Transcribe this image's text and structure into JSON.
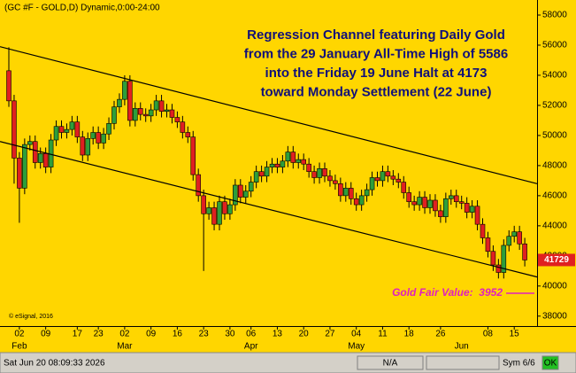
{
  "chart_data": {
    "type": "candlestick",
    "header": "(GC #F - GOLD,D) Dynamic,0:00-24:00",
    "annotation_lines": [
      "Regression Channel featuring Daily Gold",
      "from the 29 January All-Time High of 5586",
      "into the Friday 19 June Halt at 4173",
      "toward Monday Settlement (22 June)"
    ],
    "copyright": "© eSignal, 2016",
    "day_labels": [
      null,
      null,
      "02",
      null,
      null,
      null,
      null,
      "09",
      null,
      null,
      null,
      null,
      null,
      "17",
      null,
      null,
      null,
      "23",
      null,
      null,
      null,
      null,
      "02",
      null,
      null,
      null,
      null,
      "09",
      null,
      null,
      null,
      null,
      "16",
      null,
      null,
      null,
      null,
      "23",
      null,
      null,
      null,
      null,
      "30",
      null,
      null,
      null,
      "06",
      null,
      null,
      null,
      null,
      "13",
      null,
      null,
      null,
      null,
      "20",
      null,
      null,
      null,
      null,
      "27",
      null,
      null,
      null,
      null,
      "04",
      null,
      null,
      null,
      null,
      "11",
      null,
      null,
      null,
      null,
      "18",
      null,
      null,
      null,
      null,
      null,
      "26",
      null,
      null,
      null,
      null,
      null,
      null,
      null,
      null,
      "08",
      null,
      null,
      null,
      null,
      "15",
      null,
      null
    ],
    "month_labels": [
      null,
      null,
      "Feb",
      null,
      null,
      null,
      null,
      null,
      null,
      null,
      null,
      null,
      null,
      null,
      null,
      null,
      null,
      null,
      null,
      null,
      null,
      null,
      "Mar",
      null,
      null,
      null,
      null,
      null,
      null,
      null,
      null,
      null,
      null,
      null,
      null,
      null,
      null,
      null,
      null,
      null,
      null,
      null,
      null,
      null,
      null,
      null,
      "Apr",
      null,
      null,
      null,
      null,
      null,
      null,
      null,
      null,
      null,
      null,
      null,
      null,
      null,
      null,
      null,
      null,
      null,
      null,
      null,
      "May",
      null,
      null,
      null,
      null,
      null,
      null,
      null,
      null,
      null,
      null,
      null,
      null,
      null,
      null,
      null,
      null,
      null,
      null,
      null,
      "Jun",
      null,
      null,
      null,
      null,
      null,
      null,
      null,
      null,
      null,
      null,
      null,
      null
    ],
    "open": [
      54300,
      52300,
      48500,
      46500,
      49400,
      49600,
      48200,
      48800,
      47900,
      49700,
      50600,
      50200,
      50400,
      50900,
      49900,
      48700,
      49800,
      50200,
      49500,
      50100,
      50800,
      51900,
      52400,
      53600,
      51000,
      51800,
      51400,
      51300,
      51700,
      52300,
      51600,
      51700,
      51200,
      50900,
      50200,
      49900,
      47400,
      46000,
      44800,
      45200,
      44100,
      45600,
      44800,
      45400,
      46700,
      45900,
      46300,
      46900,
      47600,
      47300,
      47900,
      48100,
      47900,
      48300,
      48900,
      48200,
      48400,
      48100,
      47600,
      47200,
      47800,
      47300,
      47000,
      46800,
      46000,
      46500,
      45800,
      45400,
      46000,
      46400,
      47200,
      47000,
      47600,
      47300,
      47100,
      46900,
      46200,
      45600,
      45400,
      45900,
      45200,
      45700,
      45000,
      44600,
      45800,
      46000,
      45600,
      45500,
      44900,
      45300,
      44100,
      43200,
      42300,
      41400,
      40900,
      42700,
      43300,
      43600,
      42800
    ],
    "high": [
      55860,
      52700,
      48900,
      49800,
      50000,
      50000,
      49200,
      49200,
      50100,
      51000,
      51000,
      50800,
      51300,
      51300,
      50300,
      50200,
      50600,
      50600,
      50500,
      51200,
      52300,
      52800,
      54000,
      54000,
      52200,
      52200,
      51800,
      52100,
      52700,
      52700,
      52100,
      52100,
      51600,
      51300,
      50600,
      50300,
      47800,
      46400,
      45600,
      45600,
      46000,
      46000,
      45800,
      47100,
      47100,
      46700,
      47300,
      48000,
      48000,
      48300,
      48500,
      48500,
      48700,
      49300,
      49300,
      48800,
      48800,
      48500,
      48000,
      48200,
      48200,
      47700,
      47400,
      47200,
      46900,
      46900,
      46200,
      46400,
      46800,
      47600,
      47600,
      48000,
      48000,
      47700,
      47500,
      47300,
      46600,
      46000,
      46300,
      46300,
      46100,
      46100,
      45400,
      46200,
      46400,
      46400,
      46000,
      45900,
      45700,
      45700,
      44500,
      43600,
      42700,
      41800,
      43100,
      43700,
      44000,
      44000,
      43200
    ],
    "low": [
      51900,
      46800,
      44200,
      46100,
      49000,
      47800,
      47800,
      47500,
      47500,
      49300,
      49800,
      49800,
      50000,
      49500,
      48300,
      48300,
      49400,
      49100,
      49100,
      49700,
      50400,
      51500,
      52000,
      50600,
      50600,
      51000,
      50900,
      50900,
      51300,
      51200,
      51200,
      50800,
      50500,
      49800,
      49500,
      47000,
      45600,
      41000,
      44400,
      43700,
      43700,
      44400,
      44400,
      45000,
      45500,
      45500,
      45900,
      46500,
      46900,
      46900,
      47500,
      47500,
      47500,
      47900,
      47800,
      47800,
      47700,
      47200,
      46800,
      46800,
      46900,
      46600,
      46400,
      45600,
      45600,
      45400,
      45000,
      45000,
      45600,
      46000,
      46600,
      46600,
      46900,
      46700,
      46500,
      45800,
      45200,
      45000,
      45000,
      44800,
      44800,
      44600,
      44200,
      44200,
      45400,
      45200,
      45100,
      44500,
      44500,
      43700,
      42800,
      41900,
      41000,
      40500,
      40500,
      42300,
      42900,
      42400,
      41300
    ],
    "close": [
      52300,
      48500,
      46500,
      49400,
      49600,
      48200,
      48800,
      47900,
      49700,
      50600,
      50200,
      50400,
      50900,
      49900,
      48700,
      49800,
      50200,
      49500,
      50100,
      50800,
      51900,
      52400,
      53600,
      51000,
      51800,
      51400,
      51300,
      51700,
      52300,
      51600,
      51700,
      51200,
      50900,
      50200,
      49900,
      47400,
      46000,
      44800,
      45200,
      44100,
      45600,
      44800,
      45400,
      46700,
      45900,
      46300,
      46900,
      47600,
      47300,
      47900,
      48100,
      47900,
      48300,
      48900,
      48200,
      48400,
      48100,
      47600,
      47200,
      47800,
      47300,
      47000,
      46800,
      46000,
      46500,
      45800,
      45400,
      46000,
      46400,
      47200,
      47000,
      47600,
      47300,
      47100,
      46900,
      46200,
      45600,
      45400,
      45900,
      45200,
      45700,
      45000,
      44600,
      45800,
      46000,
      45600,
      45500,
      44900,
      45300,
      44100,
      43200,
      42300,
      41400,
      40900,
      42700,
      43300,
      43600,
      42800,
      41729
    ],
    "up_color": "#2e9e3a",
    "down_color": "#e02020",
    "channel": [
      {
        "start": 55900,
        "end": 46800
      },
      {
        "start": 49600,
        "end": 40600
      }
    ],
    "fair_value": {
      "label": "Gold Fair Value:  3952",
      "level": 39520,
      "color": "#e020c0"
    },
    "ylim": [
      37400,
      59000
    ],
    "yticks": [
      38000,
      40000,
      42000,
      44000,
      46000,
      48000,
      50000,
      52000,
      54000,
      56000,
      58000
    ]
  },
  "status_bar": {
    "datetime": "Sat Jun 20 08:09:33 2026",
    "field": "N/A",
    "sym": "Sym 6/6",
    "status": "OK"
  }
}
